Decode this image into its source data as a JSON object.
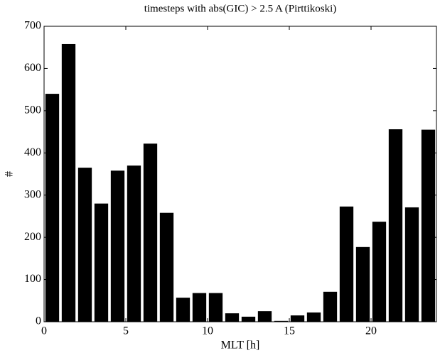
{
  "chart_data": {
    "type": "bar",
    "title": "timesteps with abs(GIC) > 2.5 A (Pirttikoski)",
    "x_label": "MLT [h]",
    "y_label": "#",
    "x": [
      0.5,
      1.5,
      2.5,
      3.5,
      4.5,
      5.5,
      6.5,
      7.5,
      8.5,
      9.5,
      10.5,
      11.5,
      12.5,
      13.5,
      14.5,
      15.5,
      16.5,
      17.5,
      18.5,
      19.5,
      20.5,
      21.5,
      22.5,
      23.5
    ],
    "values": [
      540,
      658,
      365,
      280,
      358,
      370,
      422,
      258,
      57,
      68,
      68,
      20,
      12,
      25,
      2,
      15,
      22,
      71,
      273,
      177,
      237,
      456,
      271,
      455
    ],
    "color": "#000000",
    "xlim": [
      0,
      24
    ],
    "xticks": [
      0,
      5,
      10,
      15,
      20
    ],
    "ylim": [
      0,
      700
    ],
    "yticks": [
      0,
      100,
      200,
      300,
      400,
      500,
      600,
      700
    ],
    "grid": false
  }
}
